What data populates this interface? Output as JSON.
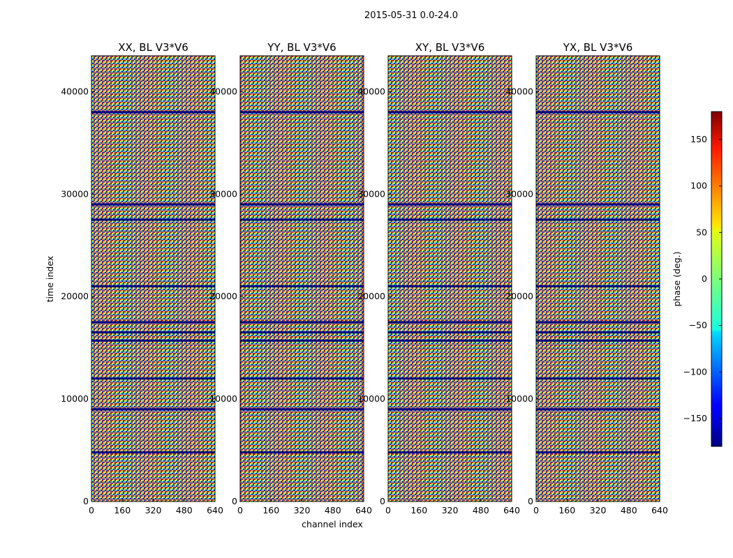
{
  "figure": {
    "suptitle": "2015-05-31 0.0-24.0",
    "x_axis_label": "channel index",
    "y_axis_label": "time index",
    "colorbar_label": "phase (deg.)"
  },
  "chart_data": {
    "type": "heatmap",
    "title": "2015-05-31 0.0-24.0",
    "xlabel": "channel index",
    "ylabel": "time index",
    "panels": [
      {
        "title": "XX, BL V3*V6",
        "xticks": [
          "0",
          "160",
          "320",
          "480",
          "640"
        ],
        "yticks": [
          "0",
          "10000",
          "20000",
          "30000",
          "40000"
        ]
      },
      {
        "title": "YY, BL V3*V6",
        "xticks": [
          "0",
          "160",
          "320",
          "480",
          "640"
        ],
        "yticks": [
          "0",
          "10000",
          "20000",
          "30000",
          "40000"
        ]
      },
      {
        "title": "XY, BL V3*V6",
        "xticks": [
          "0",
          "160",
          "320",
          "480",
          "640"
        ],
        "yticks": [
          "0",
          "10000",
          "20000",
          "30000",
          "40000"
        ]
      },
      {
        "title": "YX, BL V3*V6",
        "xticks": [
          "0",
          "160",
          "320",
          "480",
          "640"
        ],
        "yticks": [
          "0",
          "10000",
          "20000",
          "30000",
          "40000"
        ]
      }
    ],
    "xlim": [
      0,
      640
    ],
    "ylim": [
      0,
      43500
    ],
    "xtick_values": [
      0,
      160,
      320,
      480,
      640
    ],
    "ytick_values": [
      0,
      10000,
      20000,
      30000,
      40000
    ],
    "value_description": "visibility phase per (channel, time) cell; appears as dense noise with horizontal stripes",
    "colorbar": {
      "label": "phase (deg.)",
      "range": [
        -180,
        180
      ],
      "ticks": [
        "150",
        "100",
        "50",
        "0",
        "−50",
        "−100",
        "−150"
      ],
      "tick_values": [
        150,
        100,
        50,
        0,
        -50,
        -100,
        -150
      ],
      "colormap": "jet"
    },
    "grid": false,
    "flagged_time_bands": [
      {
        "time": 38000,
        "color": "#000080"
      },
      {
        "time": 29000,
        "color": "#000080"
      },
      {
        "time": 27500,
        "color": "#000080"
      },
      {
        "time": 21000,
        "color": "#000080"
      },
      {
        "time": 17500,
        "color": "#000080"
      },
      {
        "time": 16500,
        "color": "#000080"
      },
      {
        "time": 15700,
        "color": "#000080"
      },
      {
        "time": 12000,
        "color": "#000080"
      },
      {
        "time": 9000,
        "color": "#000080"
      },
      {
        "time": 4800,
        "color": "#000080"
      }
    ]
  }
}
